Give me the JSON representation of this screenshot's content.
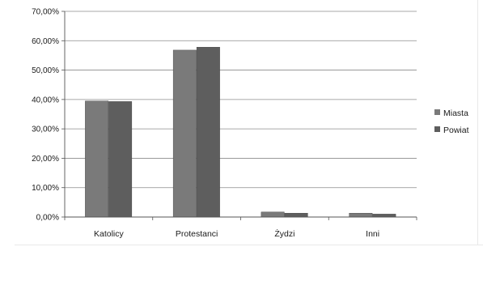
{
  "chart_data": {
    "type": "bar",
    "categories": [
      "Katolicy",
      "Protestanci",
      "Żydzi",
      "Inni"
    ],
    "series": [
      {
        "name": "Miasta",
        "values": [
          39.5,
          56.8,
          1.7,
          1.3
        ],
        "color": "#7a7a7a"
      },
      {
        "name": "Powiat",
        "values": [
          39.3,
          57.8,
          1.3,
          1.0
        ],
        "color": "#5e5e5e"
      }
    ],
    "ylim": [
      0,
      70
    ],
    "yticks": [
      "0,00%",
      "10,00%",
      "20,00%",
      "30,00%",
      "40,00%",
      "50,00%",
      "60,00%",
      "70,00%"
    ],
    "grid": true,
    "legend": "right",
    "title": "",
    "xlabel": "",
    "ylabel": ""
  }
}
